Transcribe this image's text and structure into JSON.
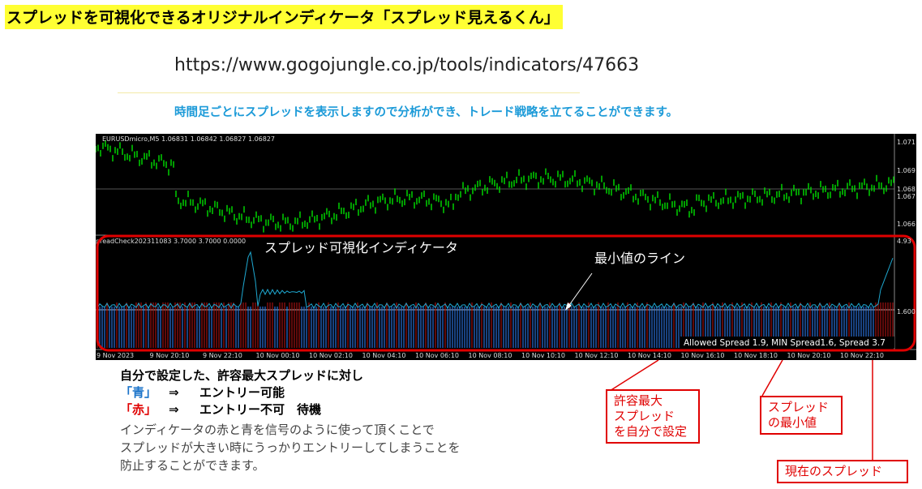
{
  "header": {
    "title": "スプレッドを可視化できるオリジナルインディケータ「スプレッド見えるくん」",
    "url": "https://www.gogojungle.co.jp/tools/indicators/47663",
    "subtitle": "時間足ごとにスプレッドを表示しますので分析ができ、トレード戦略を立てることができます。"
  },
  "chart": {
    "symbol_label": "EURUSDmicro,M5  1.06831 1.06842 1.06827 1.06827",
    "price_labels": [
      "1.071",
      "1.069",
      "1.068",
      "1.067",
      "1.066"
    ],
    "indicator_label": "preadCheck2023110​83 3.7000 3.7000 0.0000",
    "indicator_axis_labels": [
      "4.93",
      "1.600"
    ],
    "time_labels": [
      "9 Nov 2023",
      "9 Nov 20:10",
      "9 Nov 22:10",
      "10 Nov 00:10",
      "10 Nov 02:10",
      "10 Nov 04:10",
      "10 Nov 06:10",
      "10 Nov 08:10",
      "10 Nov 10:10",
      "10 Nov 12:10",
      "10 Nov 14:10",
      "10 Nov 16:10",
      "10 Nov 18:10",
      "10 Nov 20:10",
      "10 Nov 22:10"
    ],
    "status": "Allowed Spread  1.9,   MIN Spread1.6,   Spread 3.7",
    "annotations": {
      "indicator_name": "スプレッド可視化インディケータ",
      "min_line": "最小値のライン"
    }
  },
  "legend": {
    "intro": "自分で設定した、許容最大スプレッドに対し",
    "rows": [
      {
        "color_label": "「青」",
        "arrow": "⇒",
        "meaning": "エントリー可能"
      },
      {
        "color_label": "「赤」",
        "arrow": "⇒",
        "meaning": "エントリー不可　待機"
      }
    ],
    "paragraph": [
      "インディケータの赤と青を信号のように使って頂くことで",
      "スプレッドが大きい時にうっかりエントリーしてしまうことを",
      "防止することができます。"
    ]
  },
  "callouts": [
    {
      "lines": [
        "許容最大",
        "スプレッド",
        "を自分で設定"
      ]
    },
    {
      "lines": [
        "スプレッド",
        "の最小値"
      ]
    },
    {
      "lines": [
        "現在のスプレッド"
      ]
    }
  ]
}
